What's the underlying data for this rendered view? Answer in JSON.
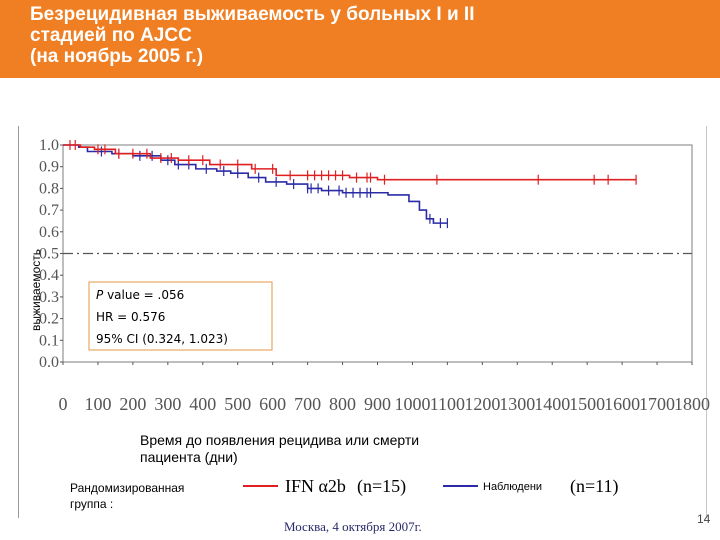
{
  "slide": {
    "title_lines": [
      "Безрецидивная выживаемость у больных I и II",
      "стадией по AJCC",
      "(на ноябрь 2005 г.)"
    ],
    "xlabel_lines": [
      "Время до появления рецидива или смерти",
      "пациента  (дни)"
    ],
    "legend_title_lines": [
      "Рандомизированная",
      "группа :"
    ],
    "footer": "Москва, 4 октября 2007г.",
    "page_number": "14",
    "header_color": "#f07f23"
  },
  "chart_data": {
    "type": "line",
    "title": "",
    "xlabel": "Время до появления рецидива или смерти пациента  (дни)",
    "ylabel": "выживаемость",
    "xlim": [
      0,
      1800
    ],
    "ylim": [
      0,
      1
    ],
    "x_ticks": [
      "0",
      "100",
      "200",
      "300",
      "400",
      "500",
      "600",
      "700",
      "800",
      "900",
      "1000",
      "1100",
      "1200",
      "1300",
      "1400",
      "1500",
      "1600",
      "1700",
      "1800"
    ],
    "y_ticks": [
      "0.0",
      "0.1",
      "0.2",
      "0.3",
      "0.4",
      "0.5",
      "0.6",
      "0.7",
      "0.8",
      "0.9",
      "1.0"
    ],
    "reference_line": 0.5,
    "grid": false,
    "legend_position": "bottom",
    "series": [
      {
        "name": "Наблюдение",
        "color": "#2b2ba8",
        "x": [
          0,
          45,
          70,
          140,
          200,
          280,
          320,
          380,
          440,
          480,
          530,
          580,
          640,
          700,
          740,
          800,
          900,
          930,
          990,
          1020,
          1040,
          1060,
          1100
        ],
        "y": [
          1.0,
          0.99,
          0.97,
          0.96,
          0.95,
          0.93,
          0.91,
          0.89,
          0.88,
          0.87,
          0.85,
          0.83,
          0.82,
          0.8,
          0.79,
          0.78,
          0.78,
          0.77,
          0.74,
          0.7,
          0.66,
          0.64,
          0.64
        ],
        "censored_x": [
          110,
          160,
          220,
          255,
          300,
          330,
          360,
          410,
          460,
          500,
          560,
          610,
          660,
          700,
          710,
          730,
          760,
          790,
          810,
          830,
          850,
          870,
          880,
          1050,
          1080,
          1100
        ]
      },
      {
        "name": "IFN α2b",
        "color": "#e02020",
        "x": [
          0,
          50,
          90,
          150,
          250,
          330,
          420,
          540,
          610,
          820,
          900,
          1000,
          1100,
          1200,
          1300,
          1400,
          1500,
          1600,
          1640
        ],
        "y": [
          1.0,
          0.99,
          0.98,
          0.96,
          0.94,
          0.93,
          0.91,
          0.89,
          0.86,
          0.85,
          0.84,
          0.84,
          0.84,
          0.84,
          0.84,
          0.84,
          0.84,
          0.84,
          0.84
        ],
        "censored_x": [
          20,
          35,
          100,
          120,
          160,
          200,
          240,
          280,
          310,
          360,
          400,
          450,
          500,
          550,
          600,
          650,
          700,
          720,
          740,
          760,
          780,
          800,
          840,
          870,
          880,
          920,
          1070,
          1360,
          1520,
          1560,
          1640
        ]
      }
    ],
    "stats": {
      "p_value_label": "P",
      "p_value_text": " value = .056",
      "hr_text": "HR = 0.576",
      "ci_text": "95% CI (0.324, 1.023)"
    },
    "legend": [
      {
        "label": "IFN α2b",
        "count": "(n=15)",
        "color": "#e02020"
      },
      {
        "label": "Наблюдени",
        "count": "(n=11)",
        "color": "#2b2ba8"
      }
    ]
  }
}
